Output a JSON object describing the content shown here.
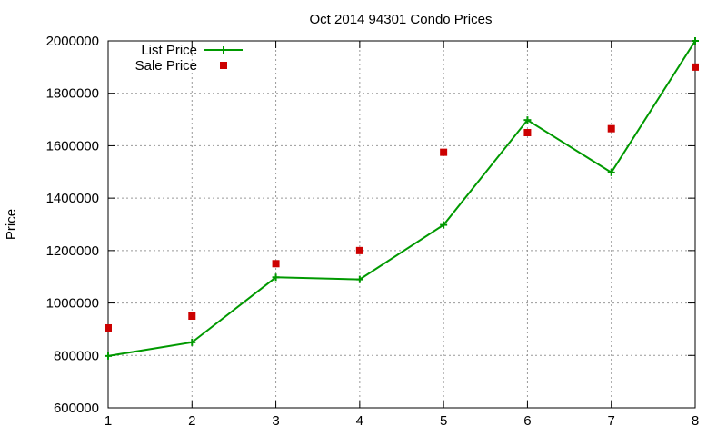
{
  "chart_data": {
    "type": "line",
    "title": "Oct 2014 94301 Condo Prices",
    "xlabel": "",
    "ylabel": "Price",
    "x": [
      1,
      2,
      3,
      4,
      5,
      6,
      7,
      8
    ],
    "xlim": [
      1,
      8
    ],
    "ylim": [
      600000,
      2000000
    ],
    "xticks": [
      "1",
      "2",
      "3",
      "4",
      "5",
      "6",
      "7",
      "8"
    ],
    "yticks": [
      "600000",
      "800000",
      "1000000",
      "1200000",
      "1400000",
      "1600000",
      "1800000",
      "2000000"
    ],
    "grid": true,
    "legend_position": "top-left",
    "series": [
      {
        "name": "List Price",
        "style": "line+cross",
        "color": "#009900",
        "values": [
          798000,
          850000,
          1098000,
          1090000,
          1298000,
          1698000,
          1498000,
          2000000
        ]
      },
      {
        "name": "Sale Price",
        "style": "square",
        "color": "#cc0000",
        "values": [
          905000,
          950000,
          1150000,
          1200000,
          1575000,
          1650000,
          1665000,
          1900000
        ]
      }
    ]
  }
}
